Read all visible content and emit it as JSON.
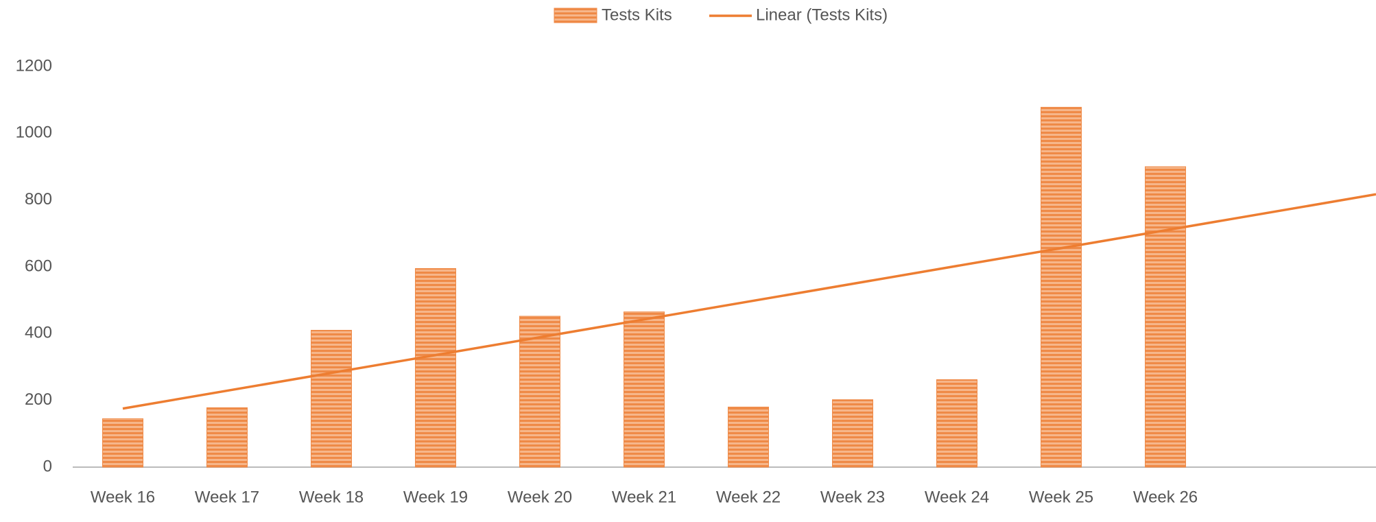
{
  "chart_data": {
    "type": "bar",
    "categories": [
      "Week 16",
      "Week 17",
      "Week 18",
      "Week 19",
      "Week 20",
      "Week 21",
      "Week 22",
      "Week 23",
      "Week 24",
      "Week 25",
      "Week 26"
    ],
    "series": [
      {
        "name": "Tests Kits",
        "color": "#ef8a47",
        "values": [
          145,
          178,
          410,
          595,
          452,
          465,
          180,
          202,
          262,
          1078,
          900
        ]
      }
    ],
    "trendline": {
      "name": "Linear (Tests Kits)",
      "type": "linear",
      "color": "#ed7d31"
    },
    "ylim": [
      0,
      1200
    ],
    "yticks": [
      0,
      200,
      400,
      600,
      800,
      1000,
      1200
    ],
    "grid": false,
    "legend": "top"
  }
}
